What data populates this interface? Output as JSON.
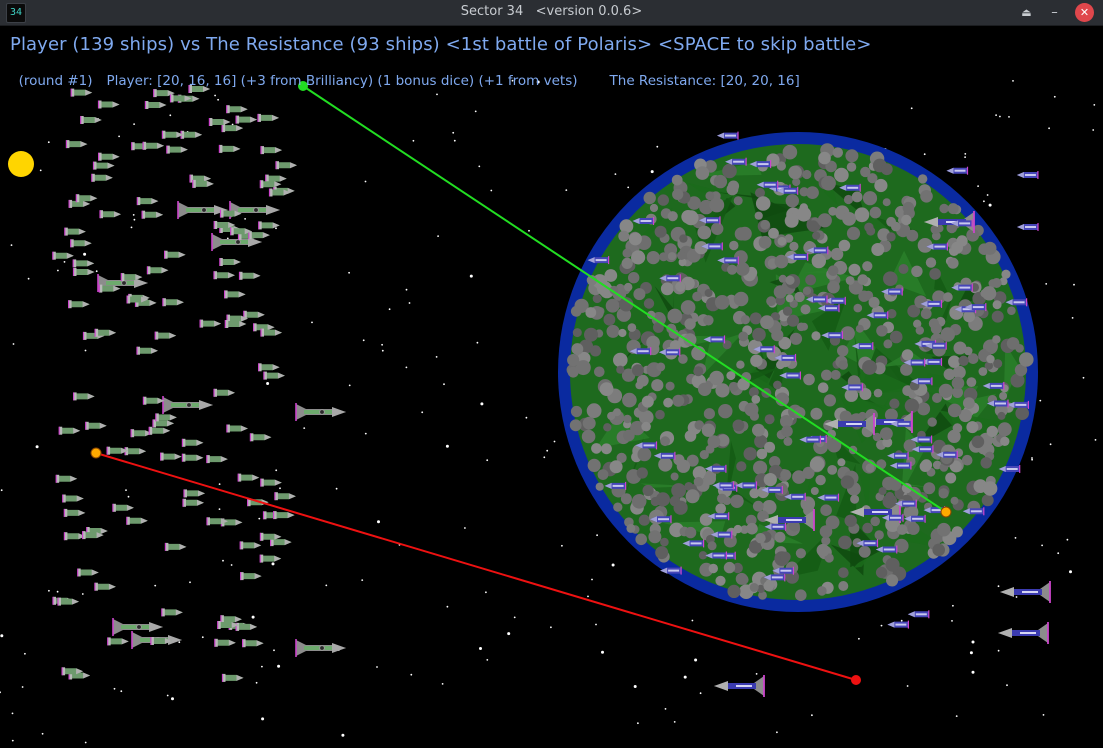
{
  "window": {
    "icon_text": "34",
    "title": "Sector 34   <version 0.0.6>",
    "up_glyph": "⏏",
    "minimize_glyph": "–",
    "close_glyph": "✕"
  },
  "hud": {
    "headline": "Player (139 ships) vs The Resistance (93 ships) <1st battle of Polaris> <SPACE to skip battle>",
    "round": "(round #1)",
    "player_stats": "Player: [20, 16, 16] (+3 from Brilliancy) (1 bonus dice) (+1 from vets)",
    "enemy_stats": "The Resistance: [20, 20, 16]"
  },
  "battle": {
    "player_ships": 139,
    "enemy_ships": 93,
    "colors": {
      "background": "#000000",
      "sun": "#ffd500",
      "planet_ocean": "#0a2aa0",
      "planet_land": "#1e6a1e",
      "planet_cloud": "#7a7a7a",
      "player_ship": "#6d9a6d",
      "enemy_ship": "#7a7ad0",
      "ship_trim": "#cc44cc",
      "green_laser": "#22dd22",
      "red_laser": "#ee1111",
      "hit_marker": "#ffaa00"
    }
  }
}
